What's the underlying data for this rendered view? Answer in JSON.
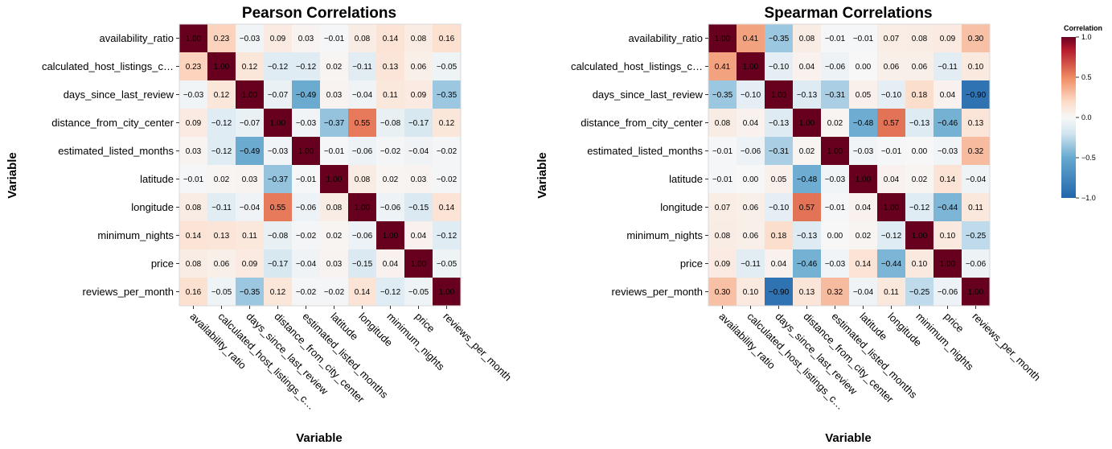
{
  "chart_data": [
    {
      "type": "heatmap",
      "title": "Pearson Correlations",
      "xlabel": "Variable",
      "ylabel": "Variable",
      "x_tick_labels": [
        "availability_ratio",
        "calculated_host_listings_c…",
        "days_since_last_review",
        "distance_from_city_center",
        "estimated_listed_months",
        "latitude",
        "longitude",
        "minimum_nights",
        "price",
        "reviews_per_month"
      ],
      "y_tick_labels": [
        "availability_ratio",
        "calculated_host_listings_c…",
        "days_since_last_review",
        "distance_from_city_center",
        "estimated_listed_months",
        "latitude",
        "longitude",
        "minimum_nights",
        "price",
        "reviews_per_month"
      ],
      "values": [
        [
          1.0,
          0.23,
          -0.03,
          0.09,
          0.03,
          -0.01,
          0.08,
          0.14,
          0.08,
          0.16
        ],
        [
          0.23,
          1.0,
          0.12,
          -0.12,
          -0.12,
          0.02,
          -0.11,
          0.13,
          0.06,
          -0.05
        ],
        [
          -0.03,
          0.12,
          1.0,
          -0.07,
          -0.49,
          0.03,
          -0.04,
          0.11,
          0.09,
          -0.35
        ],
        [
          0.09,
          -0.12,
          -0.07,
          1.0,
          -0.03,
          -0.37,
          0.55,
          -0.08,
          -0.17,
          0.12
        ],
        [
          0.03,
          -0.12,
          -0.49,
          -0.03,
          1.0,
          -0.01,
          -0.06,
          -0.02,
          -0.04,
          -0.02
        ],
        [
          -0.01,
          0.02,
          0.03,
          -0.37,
          -0.01,
          1.0,
          0.08,
          0.02,
          0.03,
          -0.02
        ],
        [
          0.08,
          -0.11,
          -0.04,
          0.55,
          -0.06,
          0.08,
          1.0,
          -0.06,
          -0.15,
          0.14
        ],
        [
          0.14,
          0.13,
          0.11,
          -0.08,
          -0.02,
          0.02,
          -0.06,
          1.0,
          0.04,
          -0.12
        ],
        [
          0.08,
          0.06,
          0.09,
          -0.17,
          -0.04,
          0.03,
          -0.15,
          0.04,
          1.0,
          -0.05
        ],
        [
          0.16,
          -0.05,
          -0.35,
          0.12,
          -0.02,
          -0.02,
          0.14,
          -0.12,
          -0.05,
          1.0
        ]
      ]
    },
    {
      "type": "heatmap",
      "title": "Spearman Correlations",
      "xlabel": "Variable",
      "ylabel": "Variable",
      "x_tick_labels": [
        "availability_ratio",
        "calculated_host_listings_c…",
        "days_since_last_review",
        "distance_from_city_center",
        "estimated_listed_months",
        "latitude",
        "longitude",
        "minimum_nights",
        "price",
        "reviews_per_month"
      ],
      "y_tick_labels": [
        "availability_ratio",
        "calculated_host_listings_c…",
        "days_since_last_review",
        "distance_from_city_center",
        "estimated_listed_months",
        "latitude",
        "longitude",
        "minimum_nights",
        "price",
        "reviews_per_month"
      ],
      "values": [
        [
          1.0,
          0.41,
          -0.35,
          0.08,
          -0.01,
          -0.01,
          0.07,
          0.08,
          0.09,
          0.3
        ],
        [
          0.41,
          1.0,
          -0.1,
          0.04,
          -0.06,
          0.0,
          0.06,
          0.06,
          -0.11,
          0.1
        ],
        [
          -0.35,
          -0.1,
          1.0,
          -0.13,
          -0.31,
          0.05,
          -0.1,
          0.18,
          0.04,
          -0.9
        ],
        [
          0.08,
          0.04,
          -0.13,
          1.0,
          0.02,
          -0.48,
          0.57,
          -0.13,
          -0.46,
          0.13
        ],
        [
          -0.01,
          -0.06,
          -0.31,
          0.02,
          1.0,
          -0.03,
          -0.01,
          0.0,
          -0.03,
          0.32
        ],
        [
          -0.01,
          0.0,
          0.05,
          -0.48,
          -0.03,
          1.0,
          0.04,
          0.02,
          0.14,
          -0.04
        ],
        [
          0.07,
          0.06,
          -0.1,
          0.57,
          -0.01,
          0.04,
          1.0,
          -0.12,
          -0.44,
          0.11
        ],
        [
          0.08,
          0.06,
          0.18,
          -0.13,
          0.0,
          0.02,
          -0.12,
          1.0,
          0.1,
          -0.25
        ],
        [
          0.09,
          -0.11,
          0.04,
          -0.46,
          -0.03,
          0.14,
          -0.44,
          0.1,
          1.0,
          -0.06
        ],
        [
          0.3,
          0.1,
          -0.9,
          0.13,
          0.32,
          -0.04,
          0.11,
          -0.25,
          -0.06,
          1.0
        ]
      ]
    }
  ],
  "legend": {
    "title": "Correlation",
    "ticks": [
      "1.0",
      "0.5",
      "0.0",
      "−0.5",
      "−1.0"
    ],
    "tick_values": [
      1.0,
      0.5,
      0.0,
      -0.5,
      -1.0
    ],
    "colors": {
      "low": "#2166ac",
      "mid_low": "#67a9cf",
      "mid_low2": "#d1e5f0",
      "mid": "#f7f7f7",
      "mid_high2": "#fddbc7",
      "mid_high": "#ef8a62",
      "high": "#b2182b",
      "max": "#67001f"
    }
  }
}
